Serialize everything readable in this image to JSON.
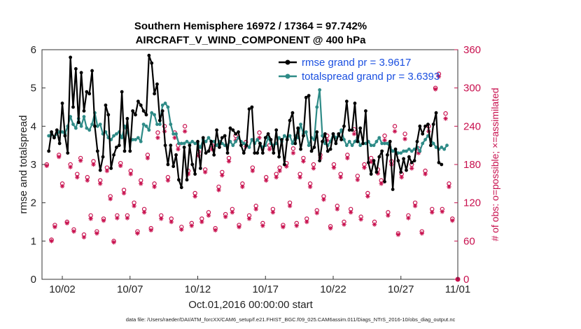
{
  "chart_data": {
    "type": "line",
    "title": "Southern Hemisphere 16972 / 17364 = 97.742%",
    "subtitle": "AIRCRAFT_V_WIND_COMPONENT @ 400 hPa",
    "xlabel": "Oct.01,2016 00:00:00 start",
    "ylabel": "rmse and totalspread",
    "y2label": "# of obs: o=possible; ×=assimilated",
    "xlim": [
      0.5,
      31.2
    ],
    "ylim": [
      0,
      6
    ],
    "y2lim": [
      0,
      360
    ],
    "x_tick_values": [
      2,
      7,
      12,
      17,
      22,
      27,
      32
    ],
    "x_tick_labels": [
      "10/02",
      "10/07",
      "10/12",
      "10/17",
      "10/22",
      "10/27",
      "11/01"
    ],
    "y_tick_labels": [
      "0",
      "1",
      "2",
      "3",
      "4",
      "5",
      "6"
    ],
    "y2_tick_labels": [
      "0",
      "60",
      "120",
      "180",
      "240",
      "300",
      "360"
    ],
    "footer": "data file: /Users/raeder/DAI/ATM_forcXX/CAM6_setup/f.e21.FHIST_BGC.f09_025.CAM6assim.011/Diags_NTrS_2016-10/obs_diag_output.nc",
    "series": [
      {
        "name": "rmse grand pr = 3.9617",
        "color": "#000000",
        "values": [
          3.35,
          3.85,
          3.7,
          3.9,
          3.55,
          4.6,
          3.75,
          3.3,
          5.8,
          4.5,
          5.5,
          4.1,
          5.4,
          4.4,
          4.9,
          4.85,
          5.45,
          4.0,
          3.35,
          2.85,
          3.2,
          4.55,
          4.3,
          2.9,
          3.25,
          3.45,
          3.5,
          4.9,
          3.35,
          4.2,
          3.35,
          4.4,
          4.3,
          4.65,
          4.55,
          4.4,
          4.3,
          5.85,
          5.65,
          4.85,
          5.1,
          4.15,
          4.4,
          3.5,
          3.0,
          3.5,
          2.95,
          3.25,
          2.6,
          2.4,
          3.45,
          2.6,
          3.5,
          3.0,
          2.75,
          3.6,
          2.9,
          3.7,
          3.3,
          3.35,
          3.6,
          3.25,
          3.9,
          3.45,
          3.7,
          3.75,
          3.3,
          3.95,
          3.9,
          3.8,
          3.85,
          3.5,
          3.3,
          3.5,
          4.45,
          4.5,
          3.3,
          3.3,
          3.55,
          3.3,
          3.7,
          3.8,
          3.65,
          3.3,
          3.9,
          3.2,
          3.65,
          3.0,
          3.65,
          4.15,
          4.35,
          3.55,
          3.95,
          3.4,
          3.75,
          4.75,
          4.8,
          3.35,
          3.45,
          3.85,
          3.1,
          3.6,
          3.8,
          3.35,
          3.4,
          3.8,
          3.55,
          3.8,
          3.65,
          4.0,
          4.65,
          3.9,
          3.9,
          4.6,
          3.6,
          3.95,
          3.55,
          4.4,
          3.05,
          2.75,
          3.1,
          2.8,
          3.2,
          3.35,
          2.55,
          3.25,
          3.6,
          2.35,
          3.4,
          3.1,
          2.8,
          3.15,
          2.85,
          3.2,
          3.05,
          3.1,
          3.6,
          4.0,
          3.8,
          4.0,
          4.05,
          3.5,
          4.05,
          4.35,
          3.05,
          3.0
        ],
        "x_start": 1.0,
        "x_step": 0.2
      },
      {
        "name": "totalspread grand pr = 3.6393",
        "color": "#2e8b87",
        "values": [
          3.75,
          3.8,
          3.7,
          3.8,
          3.85,
          3.85,
          3.8,
          4.0,
          4.25,
          4.05,
          3.95,
          4.2,
          4.0,
          4.25,
          3.95,
          3.9,
          4.05,
          4.35,
          4.0,
          4.05,
          3.8,
          3.85,
          3.7,
          3.65,
          3.75,
          3.8,
          3.85,
          3.7,
          4.0,
          3.85,
          3.6,
          3.65,
          3.65,
          3.7,
          3.6,
          4.05,
          4.0,
          3.9,
          4.35,
          4.3,
          4.05,
          4.05,
          4.55,
          4.6,
          4.5,
          4.05,
          3.8,
          3.8,
          3.55,
          3.55,
          3.55,
          3.6,
          3.55,
          3.6,
          3.55,
          3.55,
          3.45,
          3.65,
          3.6,
          3.7,
          3.6,
          3.6,
          3.5,
          3.6,
          3.55,
          3.5,
          3.5,
          3.6,
          3.5,
          3.6,
          3.7,
          3.6,
          3.55,
          3.5,
          3.45,
          3.65,
          3.55,
          3.65,
          3.55,
          3.45,
          3.5,
          3.7,
          3.55,
          3.5,
          3.55,
          3.7,
          3.6,
          3.75,
          3.7,
          3.75,
          3.55,
          3.75,
          3.7,
          4.05,
          3.8,
          3.85,
          3.5,
          3.7,
          3.65,
          4.5,
          4.95,
          3.75,
          3.55,
          3.5,
          3.6,
          3.8,
          3.7,
          3.75,
          3.9,
          3.65,
          3.5,
          3.6,
          3.5,
          3.6,
          3.7,
          3.5,
          3.55,
          3.55,
          3.6,
          3.5,
          3.5,
          3.6,
          3.7,
          3.55,
          3.55,
          3.55,
          3.45,
          3.35,
          3.35,
          3.3,
          3.3,
          3.35,
          3.35,
          3.4,
          3.35,
          3.4,
          3.45,
          3.35,
          3.55,
          3.65,
          3.75,
          3.65,
          3.55,
          3.45,
          3.4,
          3.45,
          3.4,
          3.5
        ],
        "x_start": 1.0,
        "x_step": 0.2
      },
      {
        "name": "obs possible",
        "color": "#c8104e",
        "marker": "o",
        "axis": "right",
        "x": [
          0.85,
          1.2,
          1.45,
          1.75,
          2.0,
          2.35,
          2.6,
          2.85,
          3.1,
          3.35,
          3.6,
          3.85,
          4.1,
          4.3,
          4.55,
          4.8,
          5.05,
          5.3,
          5.55,
          5.8,
          6.05,
          6.3,
          6.55,
          6.8,
          7.05,
          7.3,
          7.55,
          7.8,
          8.05,
          8.3,
          8.55,
          8.8,
          9.05,
          9.3,
          9.55,
          9.8,
          10.05,
          10.3,
          10.55,
          10.8,
          11.05,
          11.3,
          11.55,
          11.8,
          12.05,
          12.3,
          12.55,
          12.8,
          13.05,
          13.3,
          13.55,
          13.8,
          14.05,
          14.3,
          14.55,
          14.8,
          15.05,
          15.3,
          15.55,
          15.8,
          16.05,
          16.3,
          16.55,
          16.8,
          17.05,
          17.3,
          17.55,
          17.8,
          18.05,
          18.3,
          18.55,
          18.8,
          19.05,
          19.3,
          19.55,
          19.8,
          20.05,
          20.3,
          20.55,
          20.8,
          21.05,
          21.3,
          21.55,
          21.8,
          22.05,
          22.3,
          22.55,
          22.8,
          23.05,
          23.3,
          23.55,
          23.8,
          24.05,
          24.3,
          24.55,
          24.8,
          25.05,
          25.3,
          25.55,
          25.8,
          26.05,
          26.3,
          26.55,
          26.8,
          27.05,
          27.3,
          27.55,
          27.8,
          28.05,
          28.3,
          28.55,
          28.8,
          29.05,
          29.3,
          29.55,
          29.8,
          30.05,
          30.3,
          30.55,
          30.8
        ],
        "values": [
          180,
          62,
          85,
          195,
          150,
          90,
          180,
          78,
          165,
          190,
          70,
          160,
          100,
          185,
          75,
          155,
          95,
          175,
          130,
          60,
          100,
          182,
          140,
          100,
          170,
          120,
          75,
          155,
          110,
          195,
          80,
          150,
          230,
          100,
          240,
          160,
          95,
          230,
          210,
          82,
          240,
          170,
          88,
          135,
          200,
          95,
          172,
          105,
          210,
          80,
          145,
          168,
          102,
          190,
          110,
          225,
          85,
          150,
          215,
          100,
          175,
          115,
          230,
          88,
          160,
          210,
          110,
          165,
          175,
          85,
          182,
          120,
          205,
          88,
          165,
          190,
          95,
          150,
          180,
          108,
          195,
          130,
          225,
          83,
          180,
          115,
          165,
          90,
          195,
          110,
          235,
          162,
          98,
          180,
          135,
          190,
          90,
          172,
          155,
          225,
          105,
          185,
          240,
          72,
          165,
          228,
          100,
          180,
          120,
          205,
          75,
          170,
          240,
          110,
          300,
          322,
          110,
          260,
          150,
          95
        ],
        "point_count": 120
      },
      {
        "name": "obs assimilated",
        "color": "#c8104e",
        "marker": "*",
        "axis": "right",
        "x": [
          0.85,
          1.2,
          1.45,
          1.75,
          2.0,
          2.35,
          2.6,
          2.85,
          3.1,
          3.35,
          3.6,
          3.85,
          4.1,
          4.3,
          4.55,
          4.8,
          5.05,
          5.3,
          5.55,
          5.8,
          6.05,
          6.3,
          6.55,
          6.8,
          7.05,
          7.3,
          7.55,
          7.8,
          8.05,
          8.3,
          8.55,
          8.8,
          9.05,
          9.3,
          9.55,
          9.8,
          10.05,
          10.3,
          10.55,
          10.8,
          11.05,
          11.3,
          11.55,
          11.8,
          12.05,
          12.3,
          12.55,
          12.8,
          13.05,
          13.3,
          13.55,
          13.8,
          14.05,
          14.3,
          14.55,
          14.8,
          15.05,
          15.3,
          15.55,
          15.8,
          16.05,
          16.3,
          16.55,
          16.8,
          17.05,
          17.3,
          17.55,
          17.8,
          18.05,
          18.3,
          18.55,
          18.8,
          19.05,
          19.3,
          19.55,
          19.8,
          20.05,
          20.3,
          20.55,
          20.8,
          21.05,
          21.3,
          21.55,
          21.8,
          22.05,
          22.3,
          22.55,
          22.8,
          23.05,
          23.3,
          23.55,
          23.8,
          24.05,
          24.3,
          24.55,
          24.8,
          25.05,
          25.3,
          25.55,
          25.8,
          26.05,
          26.3,
          26.55,
          26.8,
          27.05,
          27.3,
          27.55,
          27.8,
          28.05,
          28.3,
          28.55,
          28.8,
          29.05,
          29.3,
          29.55,
          29.8,
          30.05,
          30.3,
          30.55,
          30.8
        ],
        "values": [
          178,
          60,
          82,
          192,
          146,
          88,
          176,
          75,
          160,
          186,
          66,
          155,
          95,
          180,
          72,
          150,
          92,
          170,
          126,
          58,
          96,
          178,
          135,
          96,
          165,
          115,
          72,
          150,
          105,
          190,
          77,
          145,
          222,
          95,
          232,
          155,
          90,
          222,
          204,
          78,
          232,
          165,
          84,
          130,
          194,
          90,
          168,
          100,
          204,
          77,
          140,
          163,
          98,
          185,
          105,
          218,
          82,
          145,
          208,
          95,
          170,
          110,
          222,
          84,
          155,
          204,
          105,
          160,
          170,
          82,
          177,
          115,
          198,
          84,
          160,
          185,
          90,
          145,
          174,
          104,
          190,
          125,
          218,
          80,
          175,
          110,
          160,
          86,
          190,
          105,
          228,
          156,
          94,
          175,
          130,
          184,
          86,
          166,
          150,
          218,
          100,
          180,
          232,
          70,
          160,
          220,
          96,
          174,
          115,
          198,
          72,
          165,
          232,
          105,
          298,
          318,
          106,
          252,
          145,
          92
        ],
        "point_count": 120
      }
    ]
  }
}
